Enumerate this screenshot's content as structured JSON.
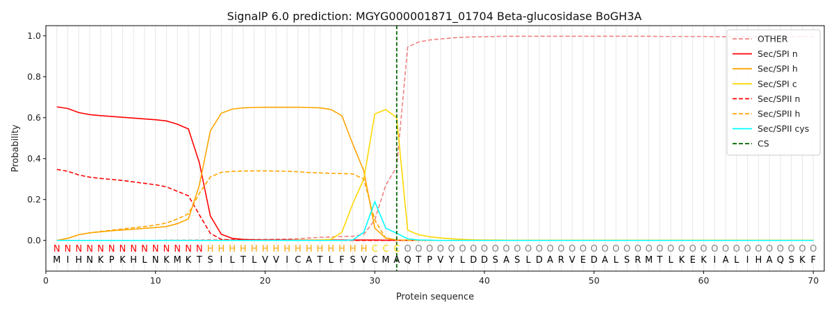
{
  "chart_data": {
    "type": "line",
    "title": "SignalP 6.0 prediction: MGYG000001871_01704 Beta-glucosidase BoGH3A",
    "xlabel": "Protein sequence",
    "ylabel": "Probability",
    "xlim": [
      0,
      71
    ],
    "ylim": [
      -0.15,
      1.05
    ],
    "xticks": [
      0,
      10,
      20,
      30,
      40,
      50,
      60,
      70
    ],
    "yticks": [
      0.0,
      0.2,
      0.4,
      0.6,
      0.8,
      1.0
    ],
    "grid": "vertical lines at each residue",
    "legend_position": "top-right",
    "cleavage_site": 32,
    "sequence": [
      "M",
      "I",
      "H",
      "N",
      "K",
      "P",
      "K",
      "H",
      "L",
      "N",
      "K",
      "M",
      "K",
      "T",
      "S",
      "I",
      "L",
      "T",
      "L",
      "V",
      "V",
      "I",
      "C",
      "A",
      "T",
      "L",
      "F",
      "S",
      "V",
      "C",
      "M",
      "A",
      "Q",
      "T",
      "P",
      "V",
      "Y",
      "L",
      "D",
      "D",
      "S",
      "A",
      "S",
      "L",
      "D",
      "A",
      "R",
      "V",
      "E",
      "D",
      "A",
      "L",
      "S",
      "R",
      "M",
      "T",
      "L",
      "K",
      "E",
      "K",
      "I",
      "A",
      "L",
      "I",
      "H",
      "A",
      "Q",
      "S",
      "K",
      "F"
    ],
    "labels": [
      "N",
      "N",
      "N",
      "N",
      "N",
      "N",
      "N",
      "N",
      "N",
      "N",
      "N",
      "N",
      "N",
      "N",
      "H",
      "H",
      "H",
      "H",
      "H",
      "H",
      "H",
      "H",
      "H",
      "H",
      "H",
      "H",
      "H",
      "H",
      "H",
      "C",
      "C",
      "C",
      "O",
      "O",
      "O",
      "O",
      "O",
      "O",
      "O",
      "O",
      "O",
      "O",
      "O",
      "O",
      "O",
      "O",
      "O",
      "O",
      "O",
      "O",
      "O",
      "O",
      "O",
      "O",
      "O",
      "O",
      "O",
      "O",
      "O",
      "O",
      "O",
      "O",
      "O",
      "O",
      "O",
      "O",
      "O",
      "O",
      "O",
      "O"
    ],
    "label_colors": {
      "N": "#ff0000",
      "H": "#ffa500",
      "C": "#ffd700",
      "O": "#808080"
    },
    "series": [
      {
        "name": "OTHER",
        "color": "#f08080",
        "dash": true,
        "values": [
          0.0,
          0.0,
          0.0,
          0.0,
          0.0,
          0.0,
          0.0,
          0.0,
          0.0,
          0.0,
          0.001,
          0.001,
          0.001,
          0.002,
          0.003,
          0.003,
          0.004,
          0.004,
          0.005,
          0.005,
          0.006,
          0.007,
          0.008,
          0.012,
          0.015,
          0.017,
          0.019,
          0.02,
          0.03,
          0.1,
          0.27,
          0.36,
          0.945,
          0.97,
          0.98,
          0.985,
          0.99,
          0.993,
          0.995,
          0.996,
          0.997,
          0.998,
          0.998,
          0.998,
          0.998,
          0.998,
          0.998,
          0.998,
          0.998,
          0.998,
          0.998,
          0.998,
          0.998,
          0.998,
          0.998,
          0.997,
          0.997,
          0.997,
          0.997,
          0.997,
          0.996,
          0.996,
          0.996,
          0.996,
          0.996,
          0.996,
          0.996,
          0.996,
          0.996,
          0.996
        ]
      },
      {
        "name": "Sec/SPI n",
        "color": "#ff0000",
        "dash": false,
        "values": [
          0.653,
          0.645,
          0.625,
          0.615,
          0.61,
          0.606,
          0.602,
          0.598,
          0.594,
          0.59,
          0.584,
          0.568,
          0.545,
          0.38,
          0.12,
          0.03,
          0.01,
          0.005,
          0.003,
          0.002,
          0.002,
          0.002,
          0.002,
          0.002,
          0.002,
          0.002,
          0.002,
          0.002,
          0.002,
          0.002,
          0.001,
          0.001,
          0.0,
          0.0,
          0.0,
          0.0,
          0.0,
          0.0,
          0.0,
          0.0,
          0.0,
          0.0,
          0.0,
          0.0,
          0.0,
          0.0,
          0.0,
          0.0,
          0.0,
          0.0,
          0.0,
          0.0,
          0.0,
          0.0,
          0.0,
          0.0,
          0.0,
          0.0,
          0.0,
          0.0,
          0.0,
          0.0,
          0.0,
          0.0,
          0.0,
          0.0,
          0.0,
          0.0,
          0.0,
          0.0
        ]
      },
      {
        "name": "Sec/SPI h",
        "color": "#ffa500",
        "dash": false,
        "values": [
          0.0,
          0.01,
          0.028,
          0.037,
          0.042,
          0.047,
          0.051,
          0.055,
          0.059,
          0.063,
          0.068,
          0.082,
          0.105,
          0.27,
          0.535,
          0.622,
          0.642,
          0.648,
          0.65,
          0.651,
          0.651,
          0.651,
          0.651,
          0.65,
          0.648,
          0.64,
          0.61,
          0.47,
          0.34,
          0.06,
          0.012,
          0.002,
          0.001,
          0.0,
          0.0,
          0.0,
          0.0,
          0.0,
          0.0,
          0.0,
          0.0,
          0.0,
          0.0,
          0.0,
          0.0,
          0.0,
          0.0,
          0.0,
          0.0,
          0.0,
          0.0,
          0.0,
          0.0,
          0.0,
          0.0,
          0.0,
          0.0,
          0.0,
          0.0,
          0.0,
          0.0,
          0.0,
          0.0,
          0.0,
          0.0,
          0.0,
          0.0,
          0.0,
          0.0,
          0.0
        ]
      },
      {
        "name": "Sec/SPI c",
        "color": "#ffd700",
        "dash": false,
        "values": [
          0.0,
          0.0,
          0.0,
          0.0,
          0.0,
          0.0,
          0.0,
          0.0,
          0.0,
          0.0,
          0.0,
          0.0,
          0.0,
          0.0,
          0.0,
          0.0,
          0.0,
          0.0,
          0.0,
          0.0,
          0.0,
          0.0,
          0.001,
          0.001,
          0.002,
          0.005,
          0.04,
          0.18,
          0.3,
          0.618,
          0.64,
          0.6,
          0.05,
          0.028,
          0.018,
          0.012,
          0.008,
          0.005,
          0.003,
          0.002,
          0.002,
          0.001,
          0.001,
          0.001,
          0.001,
          0.001,
          0.001,
          0.001,
          0.001,
          0.001,
          0.001,
          0.001,
          0.001,
          0.001,
          0.001,
          0.001,
          0.001,
          0.001,
          0.001,
          0.001,
          0.001,
          0.001,
          0.001,
          0.001,
          0.001,
          0.001,
          0.001,
          0.001,
          0.001,
          0.001
        ]
      },
      {
        "name": "Sec/SPII n",
        "color": "#ff0000",
        "dash": true,
        "values": [
          0.347,
          0.338,
          0.32,
          0.309,
          0.303,
          0.298,
          0.293,
          0.286,
          0.279,
          0.272,
          0.262,
          0.24,
          0.218,
          0.125,
          0.035,
          0.005,
          0.002,
          0.001,
          0.001,
          0.001,
          0.001,
          0.001,
          0.0,
          0.0,
          0.0,
          0.0,
          0.0,
          0.0,
          0.0,
          0.0,
          0.0,
          0.0,
          0.0,
          0.0,
          0.0,
          0.0,
          0.0,
          0.0,
          0.0,
          0.0,
          0.0,
          0.0,
          0.0,
          0.0,
          0.0,
          0.0,
          0.0,
          0.0,
          0.0,
          0.0,
          0.0,
          0.0,
          0.0,
          0.0,
          0.0,
          0.0,
          0.0,
          0.0,
          0.0,
          0.0,
          0.0,
          0.0,
          0.0,
          0.0,
          0.0,
          0.0,
          0.0,
          0.0,
          0.0,
          0.0
        ]
      },
      {
        "name": "Sec/SPII h",
        "color": "#ffa500",
        "dash": true,
        "values": [
          0.0,
          0.01,
          0.028,
          0.037,
          0.044,
          0.05,
          0.056,
          0.062,
          0.068,
          0.075,
          0.085,
          0.105,
          0.13,
          0.23,
          0.31,
          0.333,
          0.338,
          0.339,
          0.34,
          0.34,
          0.339,
          0.338,
          0.336,
          0.332,
          0.33,
          0.328,
          0.327,
          0.325,
          0.3,
          0.1,
          0.01,
          0.002,
          0.0,
          0.0,
          0.0,
          0.0,
          0.0,
          0.0,
          0.0,
          0.0,
          0.0,
          0.0,
          0.0,
          0.0,
          0.0,
          0.0,
          0.0,
          0.0,
          0.0,
          0.0,
          0.0,
          0.0,
          0.0,
          0.0,
          0.0,
          0.0,
          0.0,
          0.0,
          0.0,
          0.0,
          0.0,
          0.0,
          0.0,
          0.0,
          0.0,
          0.0,
          0.0,
          0.0,
          0.0,
          0.0
        ]
      },
      {
        "name": "Sec/SPII cys",
        "color": "#00ffff",
        "dash": false,
        "values": [
          0.0,
          0.0,
          0.0,
          0.0,
          0.0,
          0.0,
          0.0,
          0.0,
          0.0,
          0.0,
          0.0,
          0.0,
          0.0,
          0.0,
          0.0,
          0.0,
          0.0,
          0.0,
          0.0,
          0.0,
          0.0,
          0.0,
          0.0,
          0.0,
          0.0,
          0.0,
          0.0,
          0.002,
          0.04,
          0.19,
          0.06,
          0.035,
          0.008,
          0.002,
          0.001,
          0.0,
          0.0,
          0.0,
          0.0,
          0.0,
          0.0,
          0.0,
          0.0,
          0.0,
          0.0,
          0.0,
          0.0,
          0.0,
          0.0,
          0.0,
          0.0,
          0.0,
          0.0,
          0.0,
          0.0,
          0.0,
          0.0,
          0.0,
          0.0,
          0.0,
          0.0,
          0.0,
          0.0,
          0.0,
          0.0,
          0.0,
          0.0,
          0.0,
          0.0,
          0.0
        ]
      }
    ],
    "cs_legend": {
      "name": "CS",
      "color": "#006400"
    }
  }
}
